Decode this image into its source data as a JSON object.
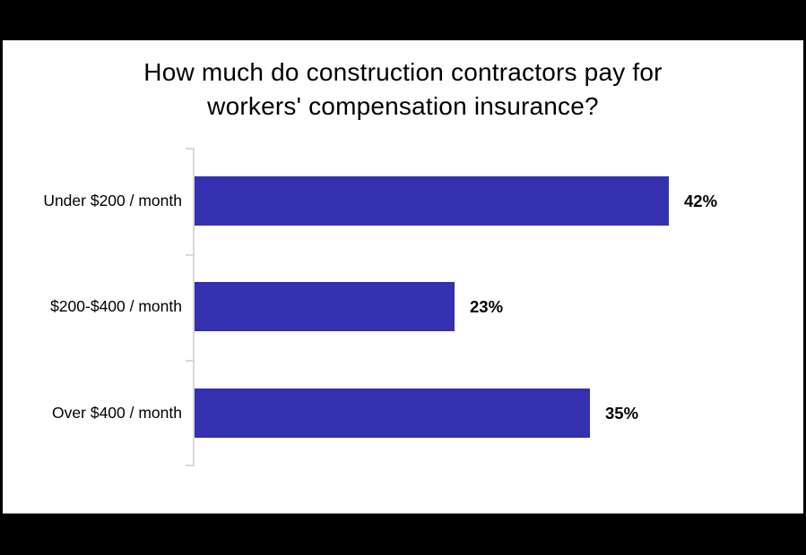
{
  "page": {
    "background_color": "#000000",
    "slide_background_color": "#ffffff"
  },
  "chart_data": {
    "type": "bar",
    "orientation": "horizontal",
    "title": "How much do construction contractors pay for workers' compensation insurance?",
    "title_line1": "How much do construction contractors pay for",
    "title_line2": "workers' compensation insurance?",
    "categories": [
      "Under $200 / month",
      "$200-$400 / month",
      "Over $400 / month"
    ],
    "values": [
      42,
      23,
      35
    ],
    "value_labels": [
      "42%",
      "23%",
      "35%"
    ],
    "xlabel": "",
    "ylabel": "",
    "xlim": [
      0,
      45
    ],
    "grid": false,
    "legend": "none",
    "bar_color": "#3530af",
    "axis_line_color": "#d9d9d9",
    "text_color": "#000000"
  }
}
